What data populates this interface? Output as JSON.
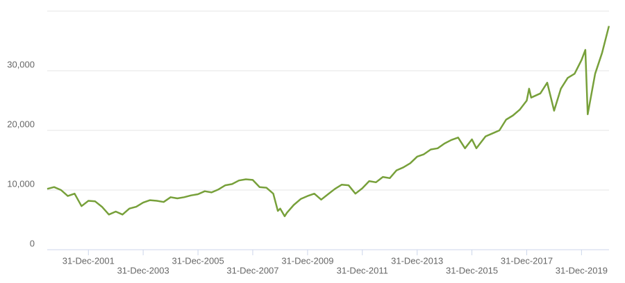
{
  "chart_data": {
    "type": "line",
    "x": [
      "2000-06-30",
      "2000-09-30",
      "2000-12-31",
      "2001-03-31",
      "2001-06-30",
      "2001-09-30",
      "2001-12-31",
      "2002-03-31",
      "2002-06-30",
      "2002-09-30",
      "2002-12-31",
      "2003-03-31",
      "2003-06-30",
      "2003-09-30",
      "2003-12-31",
      "2004-03-31",
      "2004-06-30",
      "2004-09-30",
      "2004-12-31",
      "2005-03-31",
      "2005-06-30",
      "2005-09-30",
      "2005-12-31",
      "2006-03-31",
      "2006-06-30",
      "2006-09-30",
      "2006-12-31",
      "2007-03-31",
      "2007-06-30",
      "2007-09-30",
      "2007-12-31",
      "2008-03-31",
      "2008-06-30",
      "2008-09-30",
      "2008-11-30",
      "2008-12-31",
      "2009-02-28",
      "2009-03-31",
      "2009-06-30",
      "2009-09-30",
      "2009-12-31",
      "2010-03-31",
      "2010-06-30",
      "2010-09-30",
      "2010-12-31",
      "2011-03-31",
      "2011-06-30",
      "2011-09-30",
      "2011-12-31",
      "2012-03-31",
      "2012-06-30",
      "2012-09-30",
      "2012-12-31",
      "2013-03-31",
      "2013-06-30",
      "2013-09-30",
      "2013-12-31",
      "2014-03-31",
      "2014-06-30",
      "2014-09-30",
      "2014-12-31",
      "2015-03-31",
      "2015-06-30",
      "2015-09-30",
      "2015-12-31",
      "2016-02-29",
      "2016-06-30",
      "2016-09-30",
      "2016-12-31",
      "2017-03-31",
      "2017-06-30",
      "2017-09-30",
      "2017-12-31",
      "2018-01-31",
      "2018-02-28",
      "2018-06-30",
      "2018-09-30",
      "2018-12-31",
      "2019-03-31",
      "2019-06-30",
      "2019-09-30",
      "2019-12-31",
      "2020-02-20",
      "2020-03-23",
      "2020-06-30",
      "2020-09-30",
      "2020-12-31"
    ],
    "series": [
      {
        "color": "#77a03a",
        "values": [
          10200,
          10500,
          10000,
          9000,
          9400,
          7300,
          8200,
          8100,
          7200,
          5900,
          6400,
          5900,
          6900,
          7200,
          7900,
          8300,
          8200,
          8000,
          8800,
          8600,
          8800,
          9100,
          9300,
          9800,
          9600,
          10100,
          10800,
          11000,
          11600,
          11800,
          11700,
          10500,
          10400,
          9400,
          6500,
          6900,
          5600,
          6200,
          7500,
          8500,
          9000,
          9400,
          8400,
          9300,
          10200,
          10900,
          10800,
          9400,
          10300,
          11500,
          11300,
          12200,
          12000,
          13300,
          13800,
          14500,
          15600,
          16000,
          16800,
          17000,
          17800,
          18400,
          18800,
          17000,
          18500,
          17000,
          19000,
          19500,
          20000,
          21800,
          22500,
          23500,
          25000,
          27000,
          25500,
          26200,
          28000,
          23300,
          27000,
          28800,
          29500,
          31800,
          33500,
          22700,
          29500,
          33000,
          37500
        ]
      }
    ],
    "xlim": [
      "2000-06-30",
      "2021-01-01"
    ],
    "xticks": [
      {
        "value": "2001-12-31",
        "label": "31-Dec-2001"
      },
      {
        "value": "2003-12-31",
        "label": "31-Dec-2003"
      },
      {
        "value": "2005-12-31",
        "label": "31-Dec-2005"
      },
      {
        "value": "2007-12-31",
        "label": "31-Dec-2007"
      },
      {
        "value": "2009-12-31",
        "label": "31-Dec-2009"
      },
      {
        "value": "2011-12-31",
        "label": "31-Dec-2011"
      },
      {
        "value": "2013-12-31",
        "label": "31-Dec-2013"
      },
      {
        "value": "2015-12-31",
        "label": "31-Dec-2015"
      },
      {
        "value": "2017-12-31",
        "label": "31-Dec-2017"
      },
      {
        "value": "2019-12-31",
        "label": "31-Dec-2019"
      }
    ],
    "ylim": [
      0,
      40000
    ],
    "yticks": [
      0,
      {
        "value": 10000,
        "label": "10,000"
      },
      {
        "value": 20000,
        "label": "20,000"
      },
      {
        "value": 30000,
        "label": "30,000"
      }
    ],
    "grid": true
  }
}
